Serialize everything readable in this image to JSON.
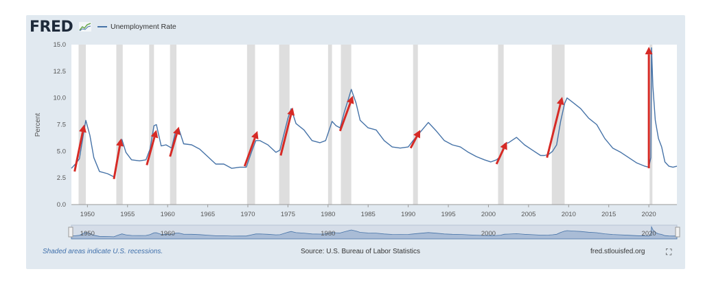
{
  "header": {
    "logo_text": "FRED",
    "logo_icon": "chart-icon",
    "legend_label": "Unemployment Rate"
  },
  "footer": {
    "recession_note": "Shaded areas indicate U.S. recessions.",
    "source": "Source: U.S. Bureau of Labor Statistics",
    "site": "fred.stlouisfed.org",
    "fullscreen_icon": "fullscreen-icon"
  },
  "colors": {
    "line": "#4572a7",
    "recession": "#dedede",
    "arrow": "#d62a25",
    "navigator_fill": "#a9bcd6"
  },
  "chart_data": {
    "type": "line",
    "title": "",
    "xlabel": "",
    "ylabel": "Percent",
    "xlim": [
      1948.0,
      2023.5
    ],
    "ylim": [
      0,
      15
    ],
    "yticks": [
      "0.0",
      "2.5",
      "5.0",
      "7.5",
      "10.0",
      "12.5",
      "15.0"
    ],
    "xticks": [
      "1950",
      "1955",
      "1960",
      "1965",
      "1970",
      "1975",
      "1980",
      "1985",
      "1990",
      "1995",
      "2000",
      "2005",
      "2010",
      "2015",
      "2020"
    ],
    "grid": false,
    "legend": "top-left",
    "series": [
      {
        "name": "Unemployment Rate",
        "x": [
          1948.0,
          1948.5,
          1949.0,
          1949.5,
          1949.8,
          1950.3,
          1950.8,
          1951.5,
          1952.5,
          1953.3,
          1953.8,
          1954.3,
          1954.8,
          1955.5,
          1956.5,
          1957.3,
          1957.8,
          1958.3,
          1958.6,
          1959.2,
          1959.8,
          1960.5,
          1961.0,
          1961.4,
          1962.0,
          1963.0,
          1964.0,
          1965.0,
          1966.0,
          1967.0,
          1968.0,
          1969.0,
          1969.8,
          1970.5,
          1971.0,
          1971.5,
          1972.5,
          1973.5,
          1974.0,
          1974.7,
          1975.0,
          1975.4,
          1976.0,
          1977.0,
          1978.0,
          1979.0,
          1979.7,
          1980.5,
          1981.0,
          1981.5,
          1982.0,
          1982.5,
          1982.9,
          1983.5,
          1984.0,
          1985.0,
          1986.0,
          1987.0,
          1988.0,
          1989.0,
          1990.0,
          1990.6,
          1991.5,
          1992.5,
          1993.5,
          1994.5,
          1995.5,
          1996.5,
          1997.5,
          1998.5,
          1999.5,
          2000.3,
          2001.0,
          2001.5,
          2002.0,
          2002.5,
          2003.5,
          2004.5,
          2005.5,
          2006.5,
          2007.0,
          2007.5,
          2008.0,
          2008.5,
          2009.0,
          2009.5,
          2009.8,
          2010.5,
          2011.5,
          2012.5,
          2013.5,
          2014.5,
          2015.5,
          2016.5,
          2017.5,
          2018.5,
          2019.5,
          2020.0,
          2020.25,
          2020.33,
          2020.5,
          2020.8,
          2021.2,
          2021.6,
          2022.0,
          2022.5,
          2023.0,
          2023.5
        ],
        "y": [
          3.4,
          3.8,
          4.3,
          6.6,
          7.9,
          6.5,
          4.4,
          3.1,
          2.9,
          2.6,
          4.5,
          6.1,
          4.9,
          4.2,
          4.1,
          4.2,
          5.2,
          7.4,
          7.5,
          5.5,
          5.6,
          5.3,
          6.9,
          7.1,
          5.7,
          5.6,
          5.2,
          4.5,
          3.8,
          3.8,
          3.4,
          3.5,
          3.5,
          5.0,
          6.0,
          6.0,
          5.6,
          4.9,
          5.1,
          7.2,
          8.1,
          9.0,
          7.6,
          7.0,
          6.0,
          5.8,
          6.0,
          7.8,
          7.4,
          7.2,
          8.6,
          9.8,
          10.8,
          9.5,
          7.9,
          7.2,
          7.0,
          6.0,
          5.4,
          5.3,
          5.4,
          6.0,
          6.8,
          7.7,
          6.9,
          6.0,
          5.6,
          5.4,
          4.9,
          4.5,
          4.2,
          4.0,
          4.2,
          4.5,
          5.7,
          5.8,
          6.3,
          5.6,
          5.1,
          4.6,
          4.6,
          4.7,
          5.0,
          5.6,
          7.8,
          9.5,
          10.0,
          9.6,
          9.0,
          8.1,
          7.5,
          6.2,
          5.3,
          4.9,
          4.4,
          3.9,
          3.6,
          3.5,
          4.4,
          14.7,
          11.1,
          7.9,
          6.2,
          5.4,
          4.0,
          3.6,
          3.5,
          3.6
        ]
      }
    ],
    "recessions": [
      [
        1948.9,
        1949.8
      ],
      [
        1953.6,
        1954.4
      ],
      [
        1957.7,
        1958.3
      ],
      [
        1960.3,
        1961.1
      ],
      [
        1969.9,
        1970.9
      ],
      [
        1973.9,
        1975.2
      ],
      [
        1980.0,
        1980.5
      ],
      [
        1981.6,
        1982.9
      ],
      [
        1990.6,
        1991.2
      ],
      [
        2001.2,
        2001.9
      ],
      [
        2007.9,
        2009.5
      ],
      [
        2020.1,
        2020.4
      ]
    ],
    "annotations": [
      {
        "x0": 1948.4,
        "y0": 3.1,
        "x1": 1949.6,
        "y1": 7.5
      },
      {
        "x0": 1953.3,
        "y0": 2.4,
        "x1": 1954.2,
        "y1": 6.2
      },
      {
        "x0": 1957.4,
        "y0": 3.7,
        "x1": 1958.6,
        "y1": 7.0
      },
      {
        "x0": 1960.3,
        "y0": 4.5,
        "x1": 1961.4,
        "y1": 7.3
      },
      {
        "x0": 1969.6,
        "y0": 3.6,
        "x1": 1971.2,
        "y1": 6.9
      },
      {
        "x0": 1974.1,
        "y0": 4.6,
        "x1": 1975.6,
        "y1": 9.1
      },
      {
        "x0": 1981.5,
        "y0": 6.9,
        "x1": 1983.1,
        "y1": 10.2
      },
      {
        "x0": 1990.3,
        "y0": 5.3,
        "x1": 1991.5,
        "y1": 7.0
      },
      {
        "x0": 2001.0,
        "y0": 3.8,
        "x1": 2002.3,
        "y1": 5.9
      },
      {
        "x0": 2007.3,
        "y0": 4.4,
        "x1": 2009.2,
        "y1": 10.1
      },
      {
        "x0": 2020.0,
        "y0": 3.4,
        "x1": 2020.0,
        "y1": 14.8
      }
    ],
    "navigator": {
      "labels": [
        "1950",
        "1960",
        "1980",
        "2000",
        "2020"
      ]
    }
  }
}
